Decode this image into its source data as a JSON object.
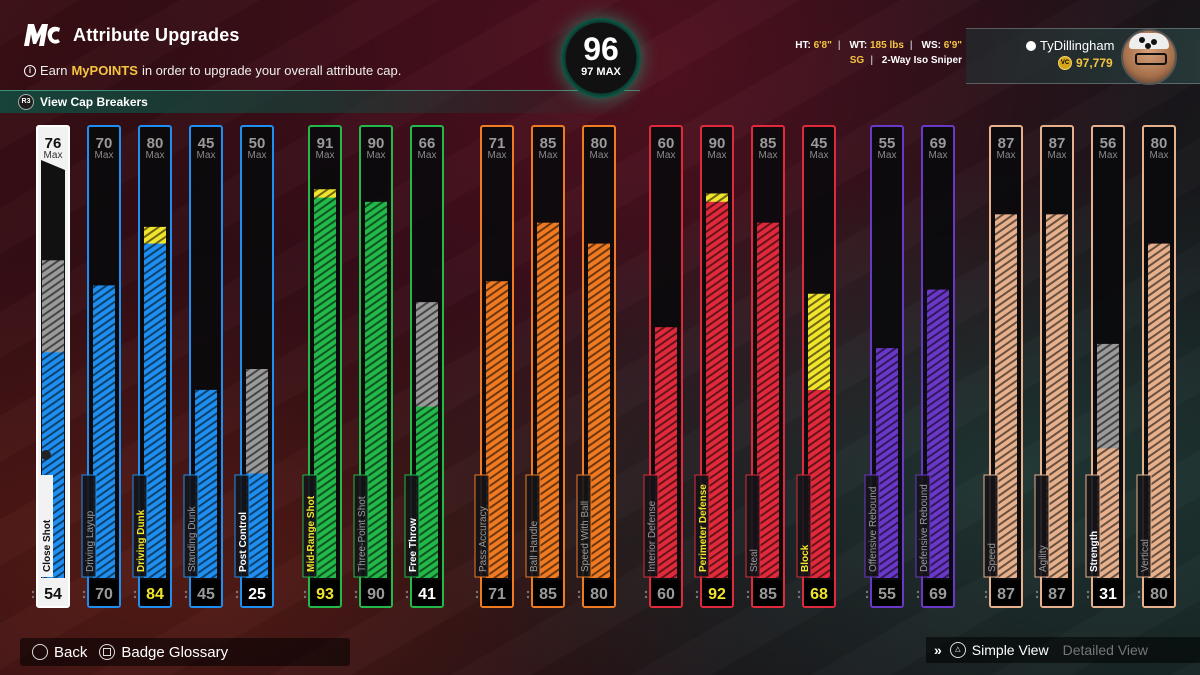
{
  "header": {
    "title": "Attribute Upgrades",
    "subtitle_prefix": "Earn ",
    "subtitle_highlight": "MyPOINTS",
    "subtitle_suffix": " in order to upgrade your overall attribute cap.",
    "cap_breakers": "View Cap Breakers"
  },
  "overall": {
    "value": "96",
    "max_label": "97 MAX"
  },
  "player": {
    "ht_label": "HT:",
    "ht": "6'8\"",
    "wt_label": "WT:",
    "wt": "185 lbs",
    "ws_label": "WS:",
    "ws": "6'9\"",
    "position": "SG",
    "build": "2-Way Iso Sniper"
  },
  "profile": {
    "name": "TyDillingham",
    "vc": "97,779"
  },
  "max_word": "Max",
  "colors": {
    "shooting": "#1e8ff0",
    "finishing": "#1e8ff0",
    "green": "#22b84a",
    "orange": "#f07a22",
    "red": "#e02a3c",
    "purple": "#6a38c8",
    "tan": "#e6b08c",
    "gray": "#9a9a9a",
    "yellow": "#f1e42c"
  },
  "attributes": [
    {
      "name": "Close Shot",
      "max": "76",
      "value": "54",
      "fill": 0.54,
      "gray": 0.76,
      "yellow": 0,
      "color": "#1e8ff0",
      "selected": true
    },
    {
      "name": "Driving Layup",
      "max": "70",
      "value": "70",
      "fill": 0.7,
      "gray": 0,
      "yellow": 0,
      "color": "#1e8ff0"
    },
    {
      "name": "Driving Dunk",
      "max": "80",
      "value": "84",
      "fill": 0.8,
      "gray": 0,
      "yellow": 0.84,
      "color": "#1e8ff0",
      "highlight": true
    },
    {
      "name": "Standing Dunk",
      "max": "45",
      "value": "45",
      "fill": 0.45,
      "gray": 0,
      "yellow": 0,
      "color": "#1e8ff0"
    },
    {
      "name": "Post Control",
      "max": "50",
      "value": "25",
      "fill": 0.25,
      "gray": 0.5,
      "yellow": 0,
      "color": "#1e8ff0",
      "bold": true
    },
    {
      "name": "Mid-Range Shot",
      "max": "91",
      "value": "93",
      "fill": 0.91,
      "gray": 0,
      "yellow": 0.93,
      "color": "#22b84a",
      "highlight": true
    },
    {
      "name": "Three-Point Shot",
      "max": "90",
      "value": "90",
      "fill": 0.9,
      "gray": 0,
      "yellow": 0,
      "color": "#22b84a"
    },
    {
      "name": "Free Throw",
      "max": "66",
      "value": "41",
      "fill": 0.41,
      "gray": 0.66,
      "yellow": 0,
      "color": "#22b84a",
      "bold": true
    },
    {
      "name": "Pass Accuracy",
      "max": "71",
      "value": "71",
      "fill": 0.71,
      "gray": 0,
      "yellow": 0,
      "color": "#f07a22"
    },
    {
      "name": "Ball Handle",
      "max": "85",
      "value": "85",
      "fill": 0.85,
      "gray": 0,
      "yellow": 0,
      "color": "#f07a22"
    },
    {
      "name": "Speed With Ball",
      "max": "80",
      "value": "80",
      "fill": 0.8,
      "gray": 0,
      "yellow": 0,
      "color": "#f07a22"
    },
    {
      "name": "Interior Defense",
      "max": "60",
      "value": "60",
      "fill": 0.6,
      "gray": 0,
      "yellow": 0,
      "color": "#e02a3c"
    },
    {
      "name": "Perimeter Defense",
      "max": "90",
      "value": "92",
      "fill": 0.9,
      "gray": 0,
      "yellow": 0.92,
      "color": "#e02a3c",
      "highlight": true
    },
    {
      "name": "Steal",
      "max": "85",
      "value": "85",
      "fill": 0.85,
      "gray": 0,
      "yellow": 0,
      "color": "#e02a3c"
    },
    {
      "name": "Block",
      "max": "45",
      "value": "68",
      "fill": 0.45,
      "gray": 0,
      "yellow": 0.68,
      "color": "#e02a3c",
      "highlight": true
    },
    {
      "name": "Offensive Rebound",
      "max": "55",
      "value": "55",
      "fill": 0.55,
      "gray": 0,
      "yellow": 0,
      "color": "#6a38c8"
    },
    {
      "name": "Defensive Rebound",
      "max": "69",
      "value": "69",
      "fill": 0.69,
      "gray": 0,
      "yellow": 0,
      "color": "#6a38c8"
    },
    {
      "name": "Speed",
      "max": "87",
      "value": "87",
      "fill": 0.87,
      "gray": 0,
      "yellow": 0,
      "color": "#e6b08c"
    },
    {
      "name": "Agility",
      "max": "87",
      "value": "87",
      "fill": 0.87,
      "gray": 0,
      "yellow": 0,
      "color": "#e6b08c"
    },
    {
      "name": "Strength",
      "max": "56",
      "value": "31",
      "fill": 0.31,
      "gray": 0.56,
      "yellow": 0,
      "color": "#e6b08c",
      "bold": true
    },
    {
      "name": "Vertical",
      "max": "80",
      "value": "80",
      "fill": 0.8,
      "gray": 0,
      "yellow": 0,
      "color": "#e6b08c"
    }
  ],
  "footer": {
    "back": "Back",
    "badge_glossary": "Badge Glossary"
  },
  "view_switch": {
    "simple": "Simple View",
    "detailed": "Detailed View"
  }
}
